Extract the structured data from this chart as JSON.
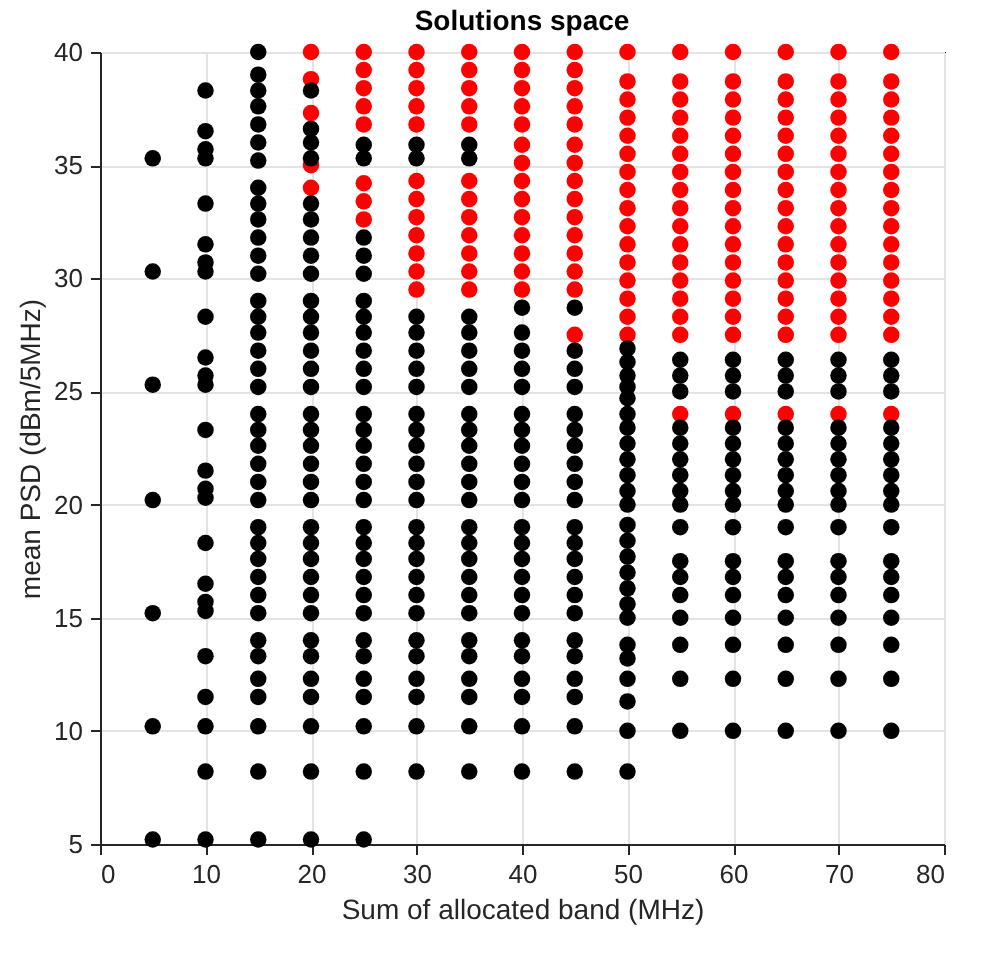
{
  "chart_data": {
    "type": "scatter",
    "title": "Solutions space",
    "xlabel": "Sum of allocated band (MHz)",
    "ylabel": "mean PSD (dBm/5MHz)",
    "xlim": [
      0,
      80
    ],
    "xticks": [
      0,
      10,
      20,
      30,
      40,
      50,
      60,
      70,
      80
    ],
    "ylim": [
      5,
      40
    ],
    "yticks": [
      5,
      10,
      15,
      20,
      25,
      30,
      35,
      40
    ],
    "grid": true,
    "marker": "circle",
    "series": [
      {
        "color": "#ff0000",
        "x": [
          20,
          20,
          20,
          20,
          20
        ],
        "values": [
          34.0,
          35.0,
          37.3,
          38.8,
          40.0
        ]
      },
      {
        "color": "#ff0000",
        "x": [
          25,
          25,
          25,
          25,
          25,
          25,
          25,
          25
        ],
        "values": [
          32.6,
          33.4,
          34.2,
          36.8,
          37.6,
          38.4,
          39.2,
          40.0
        ]
      },
      {
        "color": "#ff0000",
        "x": [
          30,
          30,
          30,
          30,
          30,
          30,
          30,
          30,
          30,
          30,
          30,
          30
        ],
        "values": [
          29.5,
          30.3,
          31.1,
          31.9,
          32.7,
          33.5,
          34.3,
          36.8,
          37.6,
          38.4,
          39.2,
          40.0
        ]
      },
      {
        "color": "#ff0000",
        "x": [
          35,
          35,
          35,
          35,
          35,
          35,
          35,
          35,
          35,
          35,
          35,
          35
        ],
        "values": [
          29.5,
          30.3,
          31.1,
          31.9,
          32.7,
          33.5,
          34.3,
          36.8,
          37.6,
          38.4,
          39.2,
          40.0
        ]
      },
      {
        "color": "#ff0000",
        "x": [
          40,
          40,
          40,
          40,
          40,
          40,
          40,
          40,
          40,
          40,
          40,
          40,
          40,
          40
        ],
        "values": [
          29.5,
          30.3,
          31.1,
          31.9,
          32.7,
          33.5,
          34.3,
          35.1,
          35.9,
          36.8,
          37.6,
          38.4,
          39.2,
          40.0
        ]
      },
      {
        "color": "#ff0000",
        "x": [
          45,
          45,
          45,
          45,
          45,
          45,
          45,
          45,
          45,
          45,
          45,
          45,
          45,
          45,
          45
        ],
        "values": [
          27.5,
          29.5,
          30.3,
          31.1,
          31.9,
          32.7,
          33.5,
          34.3,
          35.1,
          35.9,
          36.8,
          37.6,
          38.4,
          39.2,
          40.0
        ]
      },
      {
        "color": "#ff0000",
        "x": [
          50,
          50,
          50,
          50,
          50,
          50,
          50,
          50,
          50,
          50,
          50,
          50,
          50,
          50,
          50,
          50
        ],
        "values": [
          27.5,
          28.3,
          29.1,
          29.9,
          30.7,
          31.5,
          32.3,
          33.1,
          33.9,
          34.7,
          35.5,
          36.3,
          37.1,
          37.9,
          38.7,
          40.0
        ]
      },
      {
        "color": "#ff0000",
        "x": [
          55,
          55,
          55,
          55,
          55,
          55,
          55,
          55,
          55,
          55,
          55,
          55,
          55,
          55,
          55,
          55,
          55
        ],
        "values": [
          24.0,
          27.5,
          28.3,
          29.1,
          29.9,
          30.7,
          31.5,
          32.3,
          33.1,
          33.9,
          34.7,
          35.5,
          36.3,
          37.1,
          37.9,
          38.7,
          40.0
        ]
      },
      {
        "color": "#ff0000",
        "x": [
          60,
          60,
          60,
          60,
          60,
          60,
          60,
          60,
          60,
          60,
          60,
          60,
          60,
          60,
          60,
          60,
          60
        ],
        "values": [
          24.0,
          27.5,
          28.3,
          29.1,
          29.9,
          30.7,
          31.5,
          32.3,
          33.1,
          33.9,
          34.7,
          35.5,
          36.3,
          37.1,
          37.9,
          38.7,
          40.0
        ]
      },
      {
        "color": "#ff0000",
        "x": [
          65,
          65,
          65,
          65,
          65,
          65,
          65,
          65,
          65,
          65,
          65,
          65,
          65,
          65,
          65,
          65,
          65
        ],
        "values": [
          24.0,
          27.5,
          28.3,
          29.1,
          29.9,
          30.7,
          31.5,
          32.3,
          33.1,
          33.9,
          34.7,
          35.5,
          36.3,
          37.1,
          37.9,
          38.7,
          40.0
        ]
      },
      {
        "color": "#ff0000",
        "x": [
          70,
          70,
          70,
          70,
          70,
          70,
          70,
          70,
          70,
          70,
          70,
          70,
          70,
          70,
          70,
          70,
          70
        ],
        "values": [
          24.0,
          27.5,
          28.3,
          29.1,
          29.9,
          30.7,
          31.5,
          32.3,
          33.1,
          33.9,
          34.7,
          35.5,
          36.3,
          37.1,
          37.9,
          38.7,
          40.0
        ]
      },
      {
        "color": "#ff0000",
        "x": [
          75,
          75,
          75,
          75,
          75,
          75,
          75,
          75,
          75,
          75,
          75,
          75,
          75,
          75,
          75,
          75,
          75
        ],
        "values": [
          24.0,
          27.5,
          28.3,
          29.1,
          29.9,
          30.7,
          31.5,
          32.3,
          33.1,
          33.9,
          34.7,
          35.5,
          36.3,
          37.1,
          37.9,
          38.7,
          40.0
        ]
      },
      {
        "color": "#000000",
        "x": [
          5,
          5,
          5,
          5,
          5,
          5,
          5
        ],
        "values": [
          5.2,
          10.2,
          15.2,
          20.2,
          25.3,
          30.3,
          35.3
        ]
      },
      {
        "color": "#000000",
        "x": [
          10,
          10,
          10,
          10,
          10,
          10,
          10,
          10,
          10,
          10,
          10,
          10,
          10,
          10,
          10,
          10,
          10,
          10,
          10,
          10,
          10,
          10,
          10,
          10,
          10
        ],
        "values": [
          5.2,
          8.2,
          10.2,
          11.5,
          13.3,
          15.3,
          15.7,
          16.5,
          18.3,
          20.3,
          20.7,
          21.5,
          23.3,
          25.3,
          25.7,
          26.5,
          28.3,
          30.3,
          30.7,
          31.5,
          33.3,
          35.3,
          35.7,
          36.5,
          38.3
        ]
      },
      {
        "color": "#000000",
        "x": [
          15,
          15,
          15,
          15,
          15,
          15,
          15,
          15,
          15,
          15,
          15,
          15,
          15,
          15,
          15,
          15,
          15,
          15,
          15,
          15,
          15,
          15,
          15,
          15,
          15,
          15,
          15,
          15,
          15,
          15,
          15,
          15,
          15,
          15,
          15,
          15,
          15,
          15
        ],
        "values": [
          5.2,
          8.2,
          10.2,
          11.5,
          12.3,
          13.3,
          14.0,
          15.2,
          16.0,
          16.8,
          17.6,
          18.3,
          19.0,
          20.2,
          21.0,
          21.8,
          22.6,
          23.3,
          24.0,
          25.2,
          26.0,
          26.8,
          27.6,
          28.3,
          29.0,
          30.2,
          31.0,
          31.8,
          32.6,
          33.3,
          34.0,
          35.2,
          36.0,
          36.8,
          37.6,
          38.3,
          39.0,
          40.0
        ]
      },
      {
        "color": "#000000",
        "x": [
          20,
          20,
          20,
          20,
          20,
          20,
          20,
          20,
          20,
          20,
          20,
          20,
          20,
          20,
          20,
          20,
          20,
          20,
          20,
          20,
          20,
          20,
          20,
          20,
          20,
          20,
          20,
          20,
          20,
          20,
          20,
          20,
          20,
          20
        ],
        "values": [
          5.2,
          8.2,
          10.2,
          11.5,
          12.3,
          13.3,
          14.0,
          15.2,
          16.0,
          16.8,
          17.6,
          18.3,
          19.0,
          20.2,
          21.0,
          21.8,
          22.6,
          23.3,
          24.0,
          25.2,
          26.0,
          26.8,
          27.6,
          28.3,
          29.0,
          30.2,
          31.0,
          31.8,
          32.6,
          33.3,
          35.3,
          36.0,
          36.6,
          38.3
        ]
      },
      {
        "color": "#000000",
        "x": [
          25,
          25,
          25,
          25,
          25,
          25,
          25,
          25,
          25,
          25,
          25,
          25,
          25,
          25,
          25,
          25,
          25,
          25,
          25,
          25,
          25,
          25,
          25,
          25,
          25,
          25,
          25,
          25,
          25,
          25
        ],
        "values": [
          5.2,
          8.2,
          10.2,
          11.5,
          12.3,
          13.3,
          14.0,
          15.2,
          16.0,
          16.8,
          17.6,
          18.3,
          19.0,
          20.2,
          21.0,
          21.8,
          22.6,
          23.3,
          24.0,
          25.2,
          26.0,
          26.8,
          27.6,
          28.3,
          29.0,
          30.2,
          31.0,
          31.8,
          35.3,
          35.9
        ]
      },
      {
        "color": "#000000",
        "x": [
          30,
          30,
          30,
          30,
          30,
          30,
          30,
          30,
          30,
          30,
          30,
          30,
          30,
          30,
          30,
          30,
          30,
          30,
          30,
          30,
          30,
          30,
          30,
          30,
          30
        ],
        "values": [
          8.2,
          10.2,
          11.5,
          12.3,
          13.3,
          14.0,
          15.2,
          16.0,
          16.8,
          17.6,
          18.3,
          19.0,
          20.2,
          21.0,
          21.8,
          22.6,
          23.3,
          24.0,
          25.2,
          26.0,
          26.8,
          27.6,
          28.3,
          35.3,
          35.9
        ]
      },
      {
        "color": "#000000",
        "x": [
          35,
          35,
          35,
          35,
          35,
          35,
          35,
          35,
          35,
          35,
          35,
          35,
          35,
          35,
          35,
          35,
          35,
          35,
          35,
          35,
          35,
          35,
          35,
          35,
          35
        ],
        "values": [
          8.2,
          10.2,
          11.5,
          12.3,
          13.3,
          14.0,
          15.2,
          16.0,
          16.8,
          17.6,
          18.3,
          19.0,
          20.2,
          21.0,
          21.8,
          22.6,
          23.3,
          24.0,
          25.2,
          26.0,
          26.8,
          27.6,
          28.3,
          35.3,
          35.9
        ]
      },
      {
        "color": "#000000",
        "x": [
          40,
          40,
          40,
          40,
          40,
          40,
          40,
          40,
          40,
          40,
          40,
          40,
          40,
          40,
          40,
          40,
          40,
          40,
          40,
          40,
          40,
          40,
          40
        ],
        "values": [
          8.2,
          10.2,
          11.5,
          12.3,
          13.3,
          14.0,
          15.2,
          16.0,
          16.8,
          17.6,
          18.3,
          19.0,
          20.2,
          21.0,
          21.8,
          22.6,
          23.3,
          24.0,
          25.2,
          26.0,
          26.8,
          27.6,
          28.7
        ]
      },
      {
        "color": "#000000",
        "x": [
          45,
          45,
          45,
          45,
          45,
          45,
          45,
          45,
          45,
          45,
          45,
          45,
          45,
          45,
          45,
          45,
          45,
          45,
          45,
          45,
          45,
          45
        ],
        "values": [
          8.2,
          10.2,
          11.5,
          12.3,
          13.3,
          14.0,
          15.2,
          16.0,
          16.8,
          17.6,
          18.3,
          19.0,
          20.2,
          21.0,
          21.8,
          22.6,
          23.3,
          24.0,
          25.2,
          26.0,
          26.8,
          28.7
        ]
      },
      {
        "color": "#000000",
        "x": [
          50,
          50,
          50,
          50,
          50,
          50,
          50,
          50,
          50,
          50,
          50,
          50,
          50,
          50,
          50,
          50,
          50,
          50,
          50,
          50,
          50,
          50,
          50,
          50,
          50
        ],
        "values": [
          8.2,
          10.0,
          11.3,
          12.3,
          13.2,
          13.8,
          15.0,
          15.6,
          16.3,
          17.0,
          17.7,
          18.4,
          19.1,
          20.0,
          20.6,
          21.3,
          22.0,
          22.7,
          23.4,
          24.0,
          24.7,
          25.2,
          25.7,
          26.3,
          26.9
        ]
      },
      {
        "color": "#000000",
        "x": [
          55,
          55,
          55,
          55,
          55,
          55,
          55,
          55,
          55,
          55,
          55,
          55,
          55,
          55,
          55,
          55,
          55
        ],
        "values": [
          10.0,
          12.3,
          13.8,
          15.0,
          16.0,
          16.8,
          17.5,
          19.0,
          20.0,
          20.6,
          21.3,
          22.0,
          22.7,
          23.4,
          25.0,
          25.7,
          26.4
        ]
      },
      {
        "color": "#000000",
        "x": [
          60,
          60,
          60,
          60,
          60,
          60,
          60,
          60,
          60,
          60,
          60,
          60,
          60,
          60,
          60,
          60,
          60
        ],
        "values": [
          10.0,
          12.3,
          13.8,
          15.0,
          16.0,
          16.8,
          17.5,
          19.0,
          20.0,
          20.6,
          21.3,
          22.0,
          22.7,
          23.4,
          25.0,
          25.7,
          26.4
        ]
      },
      {
        "color": "#000000",
        "x": [
          65,
          65,
          65,
          65,
          65,
          65,
          65,
          65,
          65,
          65,
          65,
          65,
          65,
          65,
          65,
          65,
          65
        ],
        "values": [
          10.0,
          12.3,
          13.8,
          15.0,
          16.0,
          16.8,
          17.5,
          19.0,
          20.0,
          20.6,
          21.3,
          22.0,
          22.7,
          23.4,
          25.0,
          25.7,
          26.4
        ]
      },
      {
        "color": "#000000",
        "x": [
          70,
          70,
          70,
          70,
          70,
          70,
          70,
          70,
          70,
          70,
          70,
          70,
          70,
          70,
          70,
          70,
          70
        ],
        "values": [
          10.0,
          12.3,
          13.8,
          15.0,
          16.0,
          16.8,
          17.5,
          19.0,
          20.0,
          20.6,
          21.3,
          22.0,
          22.7,
          23.4,
          25.0,
          25.7,
          26.4
        ]
      },
      {
        "color": "#000000",
        "x": [
          75,
          75,
          75,
          75,
          75,
          75,
          75,
          75,
          75,
          75,
          75,
          75,
          75,
          75,
          75,
          75,
          75
        ],
        "values": [
          10.0,
          12.3,
          13.8,
          15.0,
          16.0,
          16.8,
          17.5,
          19.0,
          20.0,
          20.6,
          21.3,
          22.0,
          22.7,
          23.4,
          25.0,
          25.7,
          26.4
        ]
      }
    ]
  }
}
